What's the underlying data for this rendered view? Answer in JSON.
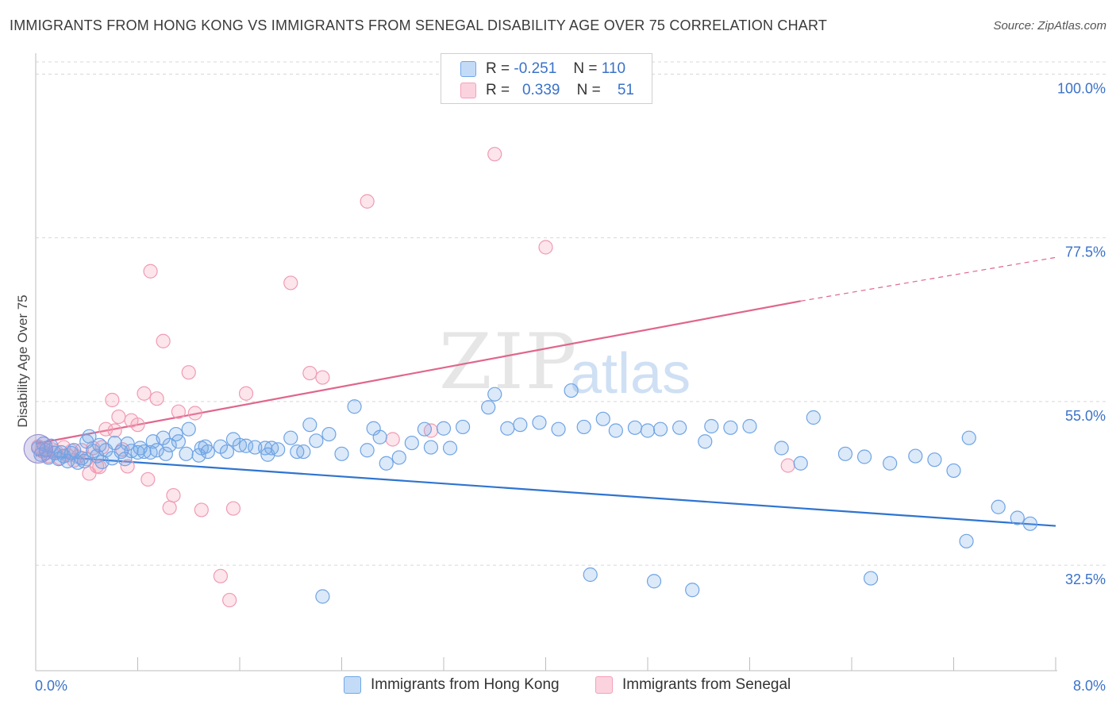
{
  "title": "IMMIGRANTS FROM HONG KONG VS IMMIGRANTS FROM SENEGAL DISABILITY AGE OVER 75 CORRELATION CHART",
  "source": "Source: ZipAtlas.com",
  "watermark": {
    "zip": "ZIP",
    "atlas": "atlas"
  },
  "legend_top": {
    "rows": [
      {
        "r_label": "R =",
        "r_value": "-0.251",
        "n_label": "N =",
        "n_value": "110"
      },
      {
        "r_label": "R =",
        "r_value": "0.339",
        "n_label": "N =",
        "n_value": "51"
      }
    ]
  },
  "chart_data": {
    "type": "scatter",
    "title": "IMMIGRANTS FROM HONG KONG VS IMMIGRANTS FROM SENEGAL DISABILITY AGE OVER 75 CORRELATION CHART",
    "xlabel": "",
    "ylabel": "Disability Age Over 75",
    "xlim": [
      0,
      8
    ],
    "ylim": [
      18,
      102
    ],
    "x_tick_labels": [
      "0.0%",
      "8.0%"
    ],
    "y_tick_values": [
      32.5,
      55.0,
      77.5,
      100.0
    ],
    "y_tick_labels": [
      "32.5%",
      "55.0%",
      "77.5%",
      "100.0%"
    ],
    "grid": "horizontal dashed",
    "legend_placement": "top-center",
    "colors": {
      "hong_kong": "#6fa8e8",
      "hong_kong_line": "#2f74d0",
      "senegal": "#f4a0b8",
      "senegal_line": "#e0668c"
    },
    "series": [
      {
        "name": "Immigrants from Hong Kong",
        "r": -0.251,
        "n": 110,
        "trend": {
          "x": [
            0,
            8
          ],
          "y": [
            47.6,
            37.9
          ]
        },
        "points": [
          [
            0.02,
            48.6
          ],
          [
            0.04,
            47.7
          ],
          [
            0.06,
            49.2
          ],
          [
            0.08,
            48.3
          ],
          [
            0.1,
            47.3
          ],
          [
            0.12,
            48.9
          ],
          [
            0.15,
            47.9
          ],
          [
            0.18,
            47.1
          ],
          [
            0.2,
            48.0
          ],
          [
            0.22,
            47.5
          ],
          [
            0.25,
            46.8
          ],
          [
            0.28,
            47.9
          ],
          [
            0.3,
            48.3
          ],
          [
            0.33,
            46.6
          ],
          [
            0.36,
            47.2
          ],
          [
            0.38,
            46.8
          ],
          [
            0.4,
            49.5
          ],
          [
            0.42,
            50.2
          ],
          [
            0.45,
            48.2
          ],
          [
            0.48,
            47.5
          ],
          [
            0.5,
            49.0
          ],
          [
            0.52,
            46.7
          ],
          [
            0.55,
            48.3
          ],
          [
            0.6,
            47.2
          ],
          [
            0.62,
            49.3
          ],
          [
            0.67,
            48.1
          ],
          [
            0.7,
            47.1
          ],
          [
            0.72,
            49.2
          ],
          [
            0.75,
            48.2
          ],
          [
            0.8,
            48.0
          ],
          [
            0.82,
            48.6
          ],
          [
            0.85,
            48.1
          ],
          [
            0.9,
            48.0
          ],
          [
            0.92,
            49.5
          ],
          [
            0.95,
            48.3
          ],
          [
            1.0,
            50.0
          ],
          [
            1.02,
            47.8
          ],
          [
            1.05,
            49.0
          ],
          [
            1.1,
            50.5
          ],
          [
            1.12,
            49.5
          ],
          [
            1.18,
            47.8
          ],
          [
            1.2,
            51.2
          ],
          [
            1.28,
            47.6
          ],
          [
            1.3,
            48.6
          ],
          [
            1.33,
            48.8
          ],
          [
            1.35,
            48.1
          ],
          [
            1.45,
            48.8
          ],
          [
            1.5,
            48.1
          ],
          [
            1.55,
            49.8
          ],
          [
            1.6,
            49.0
          ],
          [
            1.65,
            48.9
          ],
          [
            1.72,
            48.7
          ],
          [
            1.8,
            48.6
          ],
          [
            1.82,
            47.7
          ],
          [
            1.85,
            48.6
          ],
          [
            1.9,
            48.4
          ],
          [
            2.0,
            50.0
          ],
          [
            2.05,
            48.1
          ],
          [
            2.1,
            48.1
          ],
          [
            2.15,
            51.8
          ],
          [
            2.2,
            49.6
          ],
          [
            2.3,
            50.5
          ],
          [
            2.4,
            47.8
          ],
          [
            2.5,
            54.3
          ],
          [
            2.6,
            48.3
          ],
          [
            2.65,
            51.3
          ],
          [
            2.7,
            50.1
          ],
          [
            2.75,
            46.5
          ],
          [
            2.85,
            47.3
          ],
          [
            2.95,
            49.3
          ],
          [
            3.05,
            51.2
          ],
          [
            3.1,
            48.7
          ],
          [
            3.2,
            51.3
          ],
          [
            3.25,
            48.6
          ],
          [
            3.35,
            51.5
          ],
          [
            3.55,
            54.2
          ],
          [
            3.6,
            56.0
          ],
          [
            3.7,
            51.3
          ],
          [
            3.8,
            51.8
          ],
          [
            3.95,
            52.1
          ],
          [
            4.1,
            51.2
          ],
          [
            4.2,
            56.5
          ],
          [
            4.3,
            51.5
          ],
          [
            4.45,
            52.6
          ],
          [
            4.55,
            51.0
          ],
          [
            4.7,
            51.4
          ],
          [
            4.8,
            51.0
          ],
          [
            4.9,
            51.2
          ],
          [
            5.05,
            51.4
          ],
          [
            5.25,
            49.5
          ],
          [
            5.3,
            51.6
          ],
          [
            5.45,
            51.4
          ],
          [
            5.6,
            51.6
          ],
          [
            5.85,
            48.6
          ],
          [
            6.0,
            46.5
          ],
          [
            6.1,
            52.8
          ],
          [
            6.35,
            47.8
          ],
          [
            6.5,
            47.4
          ],
          [
            6.7,
            46.5
          ],
          [
            6.9,
            47.5
          ],
          [
            7.05,
            47.0
          ],
          [
            7.2,
            45.5
          ],
          [
            7.32,
            50.0
          ],
          [
            7.55,
            40.5
          ],
          [
            7.7,
            39.0
          ],
          [
            7.8,
            38.2
          ],
          [
            4.35,
            31.2
          ],
          [
            4.85,
            30.3
          ],
          [
            6.55,
            30.7
          ],
          [
            5.15,
            29.1
          ],
          [
            7.3,
            35.8
          ],
          [
            2.25,
            28.2
          ]
        ]
      },
      {
        "name": "Immigrants from Senegal",
        "r": 0.339,
        "n": 51,
        "trend": {
          "x": [
            0,
            6.0
          ],
          "y": [
            49.2,
            68.8
          ]
        },
        "trend_dashed": {
          "x": [
            6.0,
            8.0
          ],
          "y": [
            68.8,
            74.8
          ]
        },
        "points": [
          [
            0.02,
            48.8
          ],
          [
            0.05,
            48.2
          ],
          [
            0.08,
            47.9
          ],
          [
            0.1,
            47.5
          ],
          [
            0.13,
            48.4
          ],
          [
            0.16,
            48.1
          ],
          [
            0.19,
            47.2
          ],
          [
            0.22,
            48.7
          ],
          [
            0.25,
            47.6
          ],
          [
            0.28,
            48.2
          ],
          [
            0.3,
            46.9
          ],
          [
            0.33,
            47.4
          ],
          [
            0.36,
            48.3
          ],
          [
            0.4,
            47.1
          ],
          [
            0.42,
            45.1
          ],
          [
            0.45,
            48.6
          ],
          [
            0.48,
            46.1
          ],
          [
            0.5,
            46.0
          ],
          [
            0.52,
            48.7
          ],
          [
            0.55,
            51.2
          ],
          [
            0.6,
            55.2
          ],
          [
            0.62,
            51.0
          ],
          [
            0.65,
            52.9
          ],
          [
            0.68,
            48.4
          ],
          [
            0.72,
            46.1
          ],
          [
            0.75,
            52.4
          ],
          [
            0.8,
            51.8
          ],
          [
            0.85,
            56.1
          ],
          [
            0.88,
            44.3
          ],
          [
            0.9,
            72.9
          ],
          [
            0.95,
            55.4
          ],
          [
            1.0,
            63.3
          ],
          [
            1.05,
            40.4
          ],
          [
            1.08,
            42.1
          ],
          [
            1.12,
            53.6
          ],
          [
            1.2,
            59.0
          ],
          [
            1.25,
            53.4
          ],
          [
            1.3,
            40.1
          ],
          [
            1.45,
            31.0
          ],
          [
            1.52,
            27.7
          ],
          [
            1.55,
            40.3
          ],
          [
            1.65,
            56.1
          ],
          [
            2.0,
            71.3
          ],
          [
            2.15,
            58.9
          ],
          [
            2.25,
            58.3
          ],
          [
            2.6,
            82.5
          ],
          [
            2.8,
            49.8
          ],
          [
            3.1,
            51.0
          ],
          [
            3.6,
            89.0
          ],
          [
            5.9,
            46.2
          ],
          [
            4.0,
            76.2
          ]
        ]
      }
    ]
  },
  "bottom_legend": {
    "items": [
      "Immigrants from Hong Kong",
      "Immigrants from Senegal"
    ]
  }
}
